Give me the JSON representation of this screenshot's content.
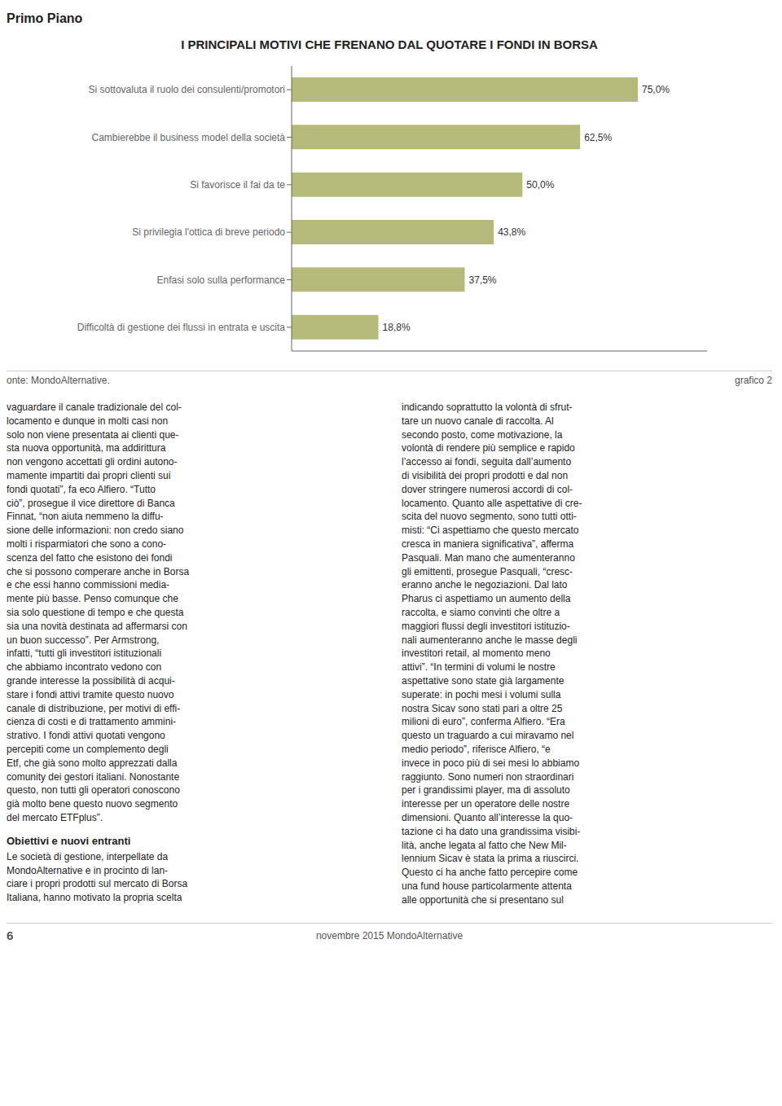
{
  "chart_data": {
    "type": "bar",
    "orientation": "horizontal",
    "title": "I PRINCIPALI MOTIVI CHE FRENANO DAL QUOTARE I FONDI IN BORSA",
    "categories": [
      "Si sottovaluta il ruolo dei consulenti/promotori",
      "Cambierebbe il business model della società",
      "Si favorisce il fai da te",
      "Si privilegia l'ottica di breve periodo",
      "Enfasi solo sulla performance",
      "Difficoltà di gestione dei flussi in entrata e uscita"
    ],
    "values": [
      75.0,
      62.5,
      50.0,
      43.8,
      37.5,
      18.8
    ],
    "value_labels": [
      "75,0%",
      "62,5%",
      "50,0%",
      "43,8%",
      "37,5%",
      "18,8%"
    ],
    "data_labels": true,
    "color": "#b5ba7a",
    "xlim": [
      0,
      90
    ],
    "tick_labels": "y",
    "grid": false,
    "annotations": [
      "Primo Piano",
      "onte: MondoAlternative.",
      "grafico 2",
      "vaguardare il canale tradizionale del col-\nlocamento e dunque in molti casi non\nsolo non viene presentata ai clienti que-\nsta nuova opportunità, ma addirittura\nnon vengono accettati gli ordini autono-\nmamente impartiti dai propri clienti sui\nfondi quotati”, fa eco Alfiero. “Tutto\nciò”, prosegue il vice direttore di Banca\nFinnat, “non aiuta nemmeno la diffu-\nsione delle informazioni: non credo siano\nmolti i risparmiatori che sono a cono-\nscenza del fatto che esistono dei fondi\nche si possono comperare anche in Borsa\ne che essi hanno commissioni media-\nmente più basse. Penso comunque che\nsia solo questione di tempo e che questa\nsia una novità destinata ad affermarsi con\nun buon successo”. Per Armstrong,\ninfatti, “tutti gli investitori istituzionali\nche abbiamo incontrato vedono con\ngrande interesse la possibilità di acqui-\nstare i fondi attivi tramite questo nuovo\ncanale di distribuzione, per motivi di effi-\ncienza di costi e di trattamento ammini-\nstrativo. I fondi attivi quotati vengono\npercepiti come un complemento degli\nEtf, che già sono molto apprezzati dalla\ncomunity dei gestori italiani. Nonostante\nquesto, non tutti gli operatori conoscono\ngià molto bene questo nuovo segmento\ndel mercato ETFplus”.",
      "Obiettivi e nuovi entranti",
      "Le società di gestione, interpellate da\nMondoAlternative e in procinto di lan-\nciare i propri prodotti sul mercato di Borsa\nItaliana, hanno motivato la propria scelta",
      "indicando soprattutto la volontà di sfrut-\ntare un nuovo canale di raccolta. Al\nsecondo posto, come motivazione, la\nvolontà di rendere più semplice e rapido\nl’accesso ai fondi, seguita dall’aumento\ndi visibilità dei propri prodotti e dal non\ndover stringere numerosi accordi di col-\nlocamento. Quanto alle aspettative di cre-\nscita del nuovo segmento, sono tutti otti-\nmisti: “Ci aspettiamo che questo mercato\ncresca in maniera significativa”, afferma\nPasquali. Man mano che aumenteranno\ngli emittenti, prosegue Pasquali, “cresc-\neranno anche le negoziazioni. Dal lato\nPharus ci aspettiamo un aumento della\nraccolta, e siamo convinti che oltre a\nmaggiori flussi degli investitori istituzio-\nnali aumenteranno anche le masse degli\ninvestitori retail, al momento meno\nattivi”. “In termini di volumi le nostre\naspettative sono state già largamente\nsuperate: in pochi mesi i volumi sulla\nnostra Sicav sono stati pari a oltre 25\nmilioni di euro”, conferma Alfiero. “Era\nquesto un traguardo a cui miravamo nel\nmedio periodo”, riferisce Alfiero, “e\ninvece in poco più di sei mesi lo abbiamo\nraggiunto. Sono numeri non straordinari\nper i grandissimi player, ma di assoluto\ninteresse per un operatore delle nostre\ndimensioni. Quanto all’interesse la quo-\ntazione ci ha dato una grandissima visibi-\nlità, anche legata al fatto che New Mil-\nlennium Sicav è stata la prima a riuscirci.\nQuesto ci ha anche fatto percepire come\nuna fund house particolarmente attenta\nalle opportunità che si presentano sul",
      "novembre 2015 MondoAlternative",
      "6"
    ]
  }
}
